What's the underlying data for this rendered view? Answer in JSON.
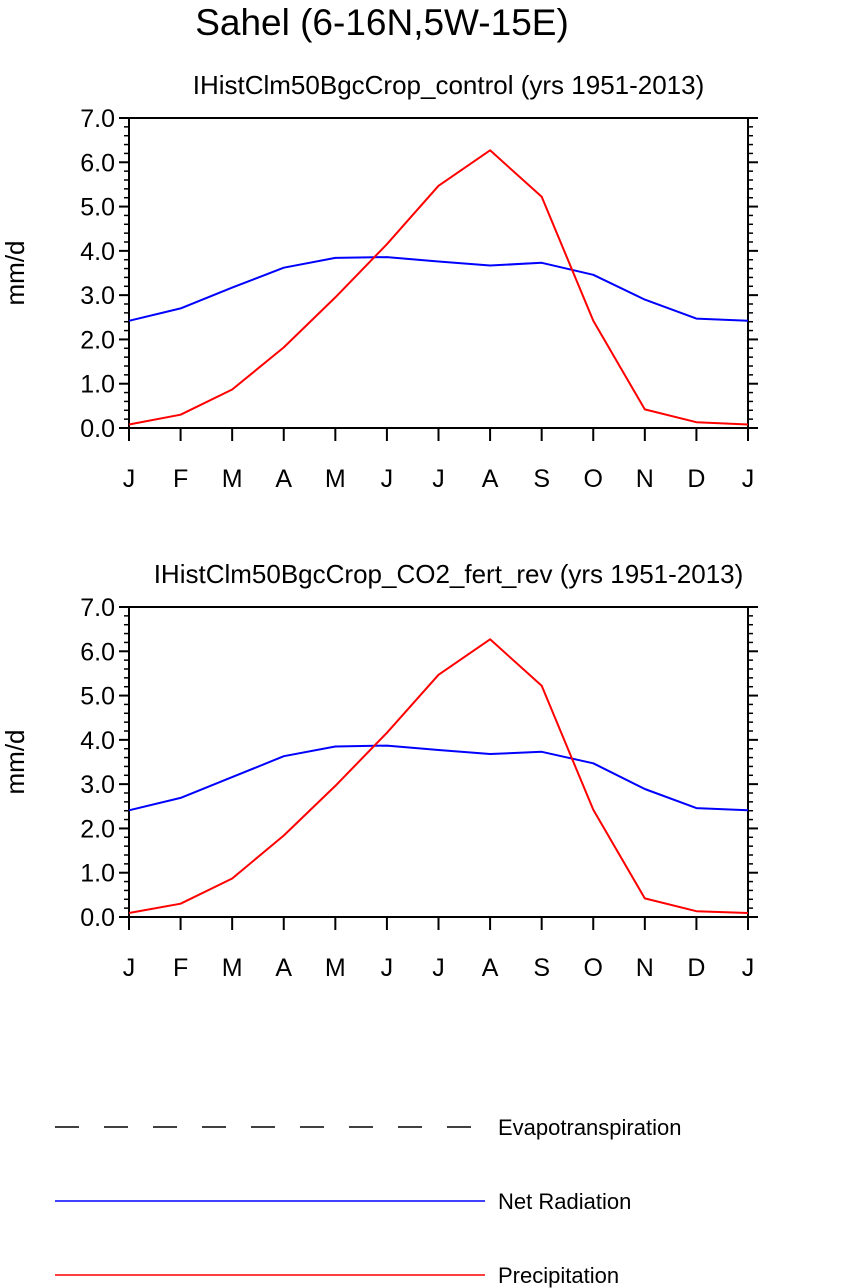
{
  "title": "Sahel (6-16N,5W-15E)",
  "legend": [
    {
      "label": "Evapotranspiration",
      "color": "#000000",
      "dashed": true
    },
    {
      "label": "Net Radiation",
      "color": "#0000ff",
      "dashed": false
    },
    {
      "label": "Precipitation",
      "color": "#ff0000",
      "dashed": false
    }
  ],
  "chart_data": [
    {
      "type": "line",
      "title": "IHistClm50BgcCrop_control (yrs 1951-2013)",
      "ylabel": "mm/d",
      "ylim": [
        0,
        7
      ],
      "yticks": [
        "0.0",
        "1.0",
        "2.0",
        "3.0",
        "4.0",
        "5.0",
        "6.0",
        "7.0"
      ],
      "categories": [
        "J",
        "F",
        "M",
        "A",
        "M",
        "J",
        "J",
        "A",
        "S",
        "O",
        "N",
        "D",
        "J"
      ],
      "series": [
        {
          "name": "Net Radiation",
          "color": "#0000ff",
          "values": [
            2.42,
            2.7,
            3.17,
            3.62,
            3.84,
            3.86,
            3.76,
            3.67,
            3.73,
            3.46,
            2.9,
            2.47,
            2.42
          ]
        },
        {
          "name": "Precipitation",
          "color": "#ff0000",
          "values": [
            0.08,
            0.3,
            0.87,
            1.82,
            2.95,
            4.15,
            5.47,
            6.27,
            5.22,
            2.42,
            0.42,
            0.13,
            0.08
          ]
        }
      ]
    },
    {
      "type": "line",
      "title": "IHistClm50BgcCrop_CO2_fert_rev (yrs 1951-2013)",
      "ylabel": "mm/d",
      "ylim": [
        0,
        7
      ],
      "yticks": [
        "0.0",
        "1.0",
        "2.0",
        "3.0",
        "4.0",
        "5.0",
        "6.0",
        "7.0"
      ],
      "categories": [
        "J",
        "F",
        "M",
        "A",
        "M",
        "J",
        "J",
        "A",
        "S",
        "O",
        "N",
        "D",
        "J"
      ],
      "series": [
        {
          "name": "Net Radiation",
          "color": "#0000ff",
          "values": [
            2.41,
            2.69,
            3.16,
            3.63,
            3.85,
            3.87,
            3.77,
            3.68,
            3.73,
            3.47,
            2.89,
            2.46,
            2.41
          ]
        },
        {
          "name": "Precipitation",
          "color": "#ff0000",
          "values": [
            0.09,
            0.3,
            0.87,
            1.84,
            2.96,
            4.16,
            5.47,
            6.27,
            5.22,
            2.42,
            0.42,
            0.13,
            0.09
          ]
        }
      ]
    }
  ]
}
